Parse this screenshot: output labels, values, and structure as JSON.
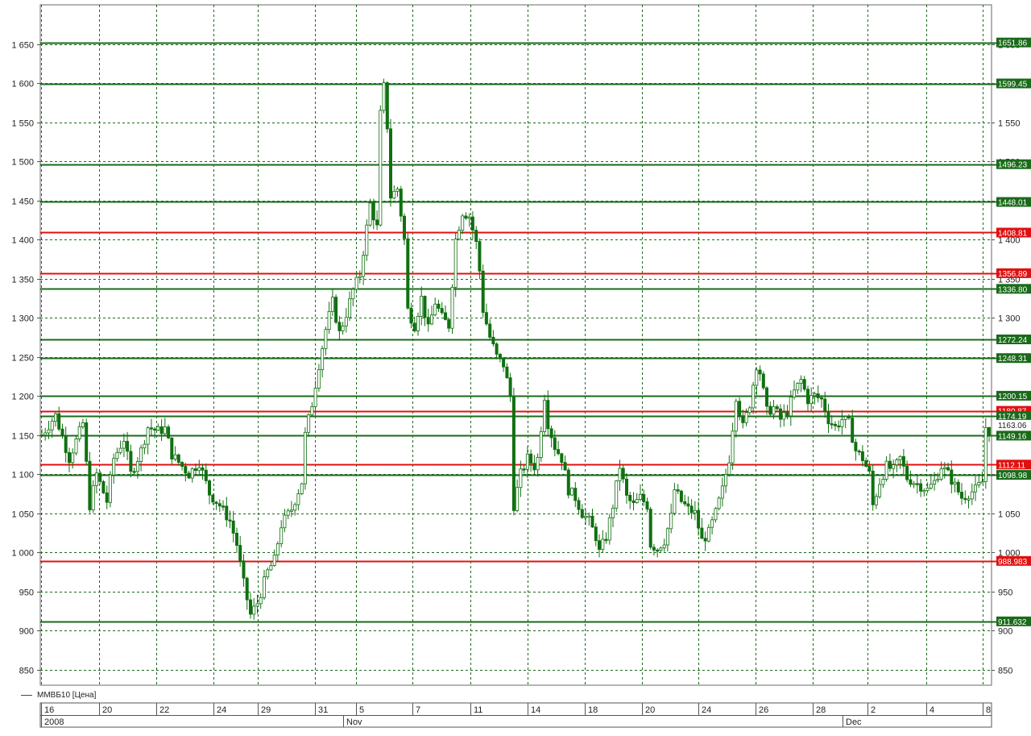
{
  "chart_data": {
    "type": "candlestick",
    "series_name": "ММВБ10 [Цена]",
    "ylim": [
      830,
      1700
    ],
    "y_ticks": [
      850,
      900,
      950,
      1000,
      1050,
      1100,
      1150,
      1200,
      1250,
      1300,
      1350,
      1400,
      1450,
      1500,
      1550,
      1600,
      1650
    ],
    "y_tick_labels": [
      "850",
      "900",
      "950",
      "1 000",
      "1 050",
      "1 100",
      "1 150",
      "1 200",
      "1 250",
      "1 300",
      "1 350",
      "1 400",
      "1 450",
      "1 500",
      "1 550",
      "1 600",
      "1 650"
    ],
    "right_axis_tick_labels": [
      "850",
      "900",
      "950",
      "1 000",
      "1 050",
      "1 100",
      "1 150",
      "1 200",
      "1 250",
      "1 300",
      "1 350",
      "1 400",
      "1 450",
      "1 500",
      "1 550",
      "1 600",
      "1 650"
    ],
    "x_day_labels": [
      "16",
      "20",
      "22",
      "24",
      "29",
      "31",
      "5",
      "7",
      "11",
      "14",
      "18",
      "20",
      "24",
      "26",
      "28",
      "2",
      "4",
      "8"
    ],
    "x_period_labels": [
      "2008",
      "Nov",
      "Dec"
    ],
    "x_period_label_positions": [
      0,
      6,
      15
    ],
    "colors": {
      "candle": "#107010",
      "green_line": "#1a6a1a",
      "red_line": "#e01010",
      "grid": "#1a6a1a"
    },
    "horizontal_lines": [
      {
        "value": 1651.86,
        "label": "1651.86",
        "color": "green"
      },
      {
        "value": 1599.45,
        "label": "1599.45",
        "color": "green"
      },
      {
        "value": 1496.23,
        "label": "1496.23",
        "color": "green"
      },
      {
        "value": 1448.01,
        "label": "1448.01",
        "color": "green"
      },
      {
        "value": 1408.81,
        "label": "1408.81",
        "color": "red"
      },
      {
        "value": 1356.89,
        "label": "1356.89",
        "color": "red"
      },
      {
        "value": 1336.8,
        "label": "1336.80",
        "color": "green"
      },
      {
        "value": 1272.24,
        "label": "1272.24",
        "color": "green"
      },
      {
        "value": 1248.31,
        "label": "1248.31",
        "color": "green"
      },
      {
        "value": 1200.15,
        "label": "1200.15",
        "color": "green"
      },
      {
        "value": 1180.87,
        "label": "1180.87",
        "color": "red"
      },
      {
        "value": 1174.19,
        "label": "1174.19",
        "color": "green"
      },
      {
        "value": 1163.06,
        "label": "1163.06",
        "color": "white"
      },
      {
        "value": 1149.16,
        "label": "1149.16",
        "color": "green"
      },
      {
        "value": 1112.11,
        "label": "1112.11",
        "color": "red"
      },
      {
        "value": 1098.98,
        "label": "1098.98",
        "color": "green"
      },
      {
        "value": 988.98,
        "label": "988.983",
        "color": "red"
      },
      {
        "value": 911.63,
        "label": "911.632",
        "color": "green"
      }
    ],
    "price_path": [
      [
        0,
        1150
      ],
      [
        4,
        1175
      ],
      [
        8,
        1120
      ],
      [
        12,
        1165
      ],
      [
        14,
        1060
      ],
      [
        16,
        1100
      ],
      [
        19,
        1065
      ],
      [
        21,
        1120
      ],
      [
        24,
        1145
      ],
      [
        26,
        1100
      ],
      [
        29,
        1130
      ],
      [
        31,
        1160
      ],
      [
        34,
        1155
      ],
      [
        36,
        1158
      ],
      [
        38,
        1125
      ],
      [
        41,
        1110
      ],
      [
        43,
        1100
      ],
      [
        46,
        1115
      ],
      [
        49,
        1075
      ],
      [
        52,
        1060
      ],
      [
        55,
        1040
      ],
      [
        57,
        1010
      ],
      [
        59,
        960
      ],
      [
        61,
        920
      ],
      [
        63,
        935
      ],
      [
        66,
        975
      ],
      [
        68,
        990
      ],
      [
        70,
        1035
      ],
      [
        73,
        1055
      ],
      [
        76,
        1090
      ],
      [
        77,
        1150
      ],
      [
        79,
        1190
      ],
      [
        81,
        1240
      ],
      [
        83,
        1285
      ],
      [
        85,
        1320
      ],
      [
        87,
        1280
      ],
      [
        89,
        1305
      ],
      [
        91,
        1335
      ],
      [
        93,
        1355
      ],
      [
        95,
        1415
      ],
      [
        96,
        1445
      ],
      [
        98,
        1415
      ],
      [
        99,
        1560
      ],
      [
        100,
        1595
      ],
      [
        101,
        1545
      ],
      [
        102,
        1455
      ],
      [
        104,
        1465
      ],
      [
        106,
        1400
      ],
      [
        107,
        1310
      ],
      [
        109,
        1290
      ],
      [
        111,
        1325
      ],
      [
        113,
        1285
      ],
      [
        115,
        1320
      ],
      [
        117,
        1300
      ],
      [
        119,
        1290
      ],
      [
        121,
        1400
      ],
      [
        123,
        1435
      ],
      [
        125,
        1430
      ],
      [
        127,
        1395
      ],
      [
        128,
        1360
      ],
      [
        129,
        1310
      ],
      [
        131,
        1275
      ],
      [
        133,
        1250
      ],
      [
        135,
        1240
      ],
      [
        137,
        1200
      ],
      [
        138,
        1060
      ],
      [
        140,
        1100
      ],
      [
        142,
        1120
      ],
      [
        144,
        1110
      ],
      [
        145,
        1120
      ],
      [
        147,
        1200
      ],
      [
        148,
        1165
      ],
      [
        150,
        1135
      ],
      [
        152,
        1120
      ],
      [
        154,
        1080
      ],
      [
        156,
        1070
      ],
      [
        158,
        1050
      ],
      [
        160,
        1040
      ],
      [
        162,
        1020
      ],
      [
        163,
        1000
      ],
      [
        165,
        1020
      ],
      [
        167,
        1060
      ],
      [
        169,
        1110
      ],
      [
        171,
        1070
      ],
      [
        173,
        1060
      ],
      [
        175,
        1070
      ],
      [
        177,
        1060
      ],
      [
        178,
        1010
      ],
      [
        180,
        1005
      ],
      [
        182,
        1015
      ],
      [
        184,
        1045
      ],
      [
        185,
        1080
      ],
      [
        187,
        1065
      ],
      [
        189,
        1055
      ],
      [
        191,
        1050
      ],
      [
        193,
        1015
      ],
      [
        195,
        1025
      ],
      [
        197,
        1050
      ],
      [
        199,
        1080
      ],
      [
        201,
        1120
      ],
      [
        203,
        1200
      ],
      [
        205,
        1160
      ],
      [
        207,
        1190
      ],
      [
        209,
        1240
      ],
      [
        210,
        1230
      ],
      [
        212,
        1180
      ],
      [
        214,
        1185
      ],
      [
        216,
        1170
      ],
      [
        218,
        1180
      ],
      [
        220,
        1205
      ],
      [
        222,
        1220
      ],
      [
        224,
        1195
      ],
      [
        226,
        1200
      ],
      [
        228,
        1195
      ],
      [
        230,
        1170
      ],
      [
        232,
        1160
      ],
      [
        234,
        1170
      ],
      [
        236,
        1165
      ],
      [
        238,
        1130
      ],
      [
        240,
        1120
      ],
      [
        242,
        1100
      ],
      [
        243,
        1060
      ],
      [
        245,
        1090
      ],
      [
        247,
        1110
      ],
      [
        249,
        1105
      ],
      [
        251,
        1120
      ],
      [
        253,
        1095
      ],
      [
        255,
        1090
      ],
      [
        257,
        1085
      ],
      [
        259,
        1080
      ],
      [
        261,
        1090
      ],
      [
        263,
        1110
      ],
      [
        265,
        1100
      ],
      [
        267,
        1085
      ],
      [
        269,
        1070
      ],
      [
        271,
        1075
      ],
      [
        273,
        1080
      ],
      [
        275,
        1090
      ],
      [
        276,
        1160
      ],
      [
        277,
        1155
      ]
    ]
  }
}
